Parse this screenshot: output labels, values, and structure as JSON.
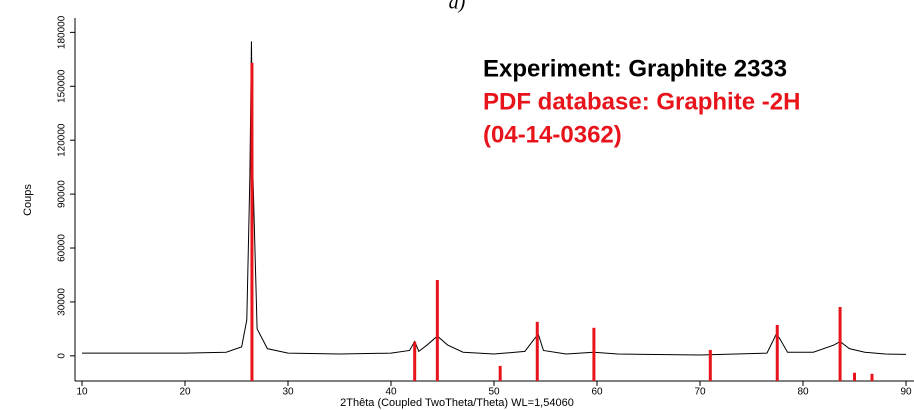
{
  "chart_data": {
    "type": "line",
    "title": "a)",
    "x_label": "2Thêta (Coupled TwoTheta/Theta) WL=1,54060",
    "y_label": "Coups",
    "annotations": [
      "Experiment: Graphite 2333",
      "PDF database: Graphite -2H",
      "(04-14-0362)"
    ],
    "annotation_colors": [
      "#000000",
      "#e8141b",
      "#e8141b"
    ],
    "xlim": [
      10,
      90
    ],
    "ylim": [
      -14000,
      188000
    ],
    "xticks": [
      10,
      20,
      30,
      40,
      50,
      60,
      70,
      80,
      90
    ],
    "yticks": [
      0,
      30000,
      60000,
      90000,
      120000,
      150000,
      180000
    ],
    "series": [
      {
        "name": "Experiment: Graphite 2333",
        "color": "#000000",
        "kind": "line",
        "x": [
          10,
          20,
          24,
          25.5,
          26.0,
          26.3,
          26.45,
          26.6,
          27.0,
          28,
          30,
          35,
          40,
          41.8,
          42.3,
          42.7,
          43.5,
          44.5,
          45.5,
          47,
          50,
          53,
          54.0,
          54.3,
          54.8,
          57,
          59.7,
          62,
          70,
          76.5,
          77.4,
          77.7,
          78.5,
          81,
          83,
          83.6,
          84.5,
          86,
          88,
          90
        ],
        "values": [
          1500,
          1500,
          2000,
          5000,
          20000,
          100000,
          175000,
          100000,
          15000,
          4000,
          1500,
          1000,
          1500,
          3000,
          8000,
          2500,
          6000,
          11000,
          6000,
          2000,
          1000,
          2500,
          10000,
          12000,
          3000,
          1000,
          2000,
          1000,
          500,
          1500,
          12000,
          10000,
          2000,
          2000,
          6000,
          8000,
          4000,
          2000,
          1000,
          800
        ]
      },
      {
        "name": "PDF database: Graphite -2H",
        "color": "#e8141b",
        "kind": "stick",
        "x": [
          26.5,
          42.3,
          44.5,
          50.6,
          54.2,
          59.7,
          71.0,
          77.5,
          83.6,
          85.0,
          86.7
        ],
        "values": [
          163000,
          7800,
          42200,
          -5600,
          18900,
          15600,
          3300,
          17200,
          27200,
          -9400,
          -10000
        ]
      }
    ]
  }
}
